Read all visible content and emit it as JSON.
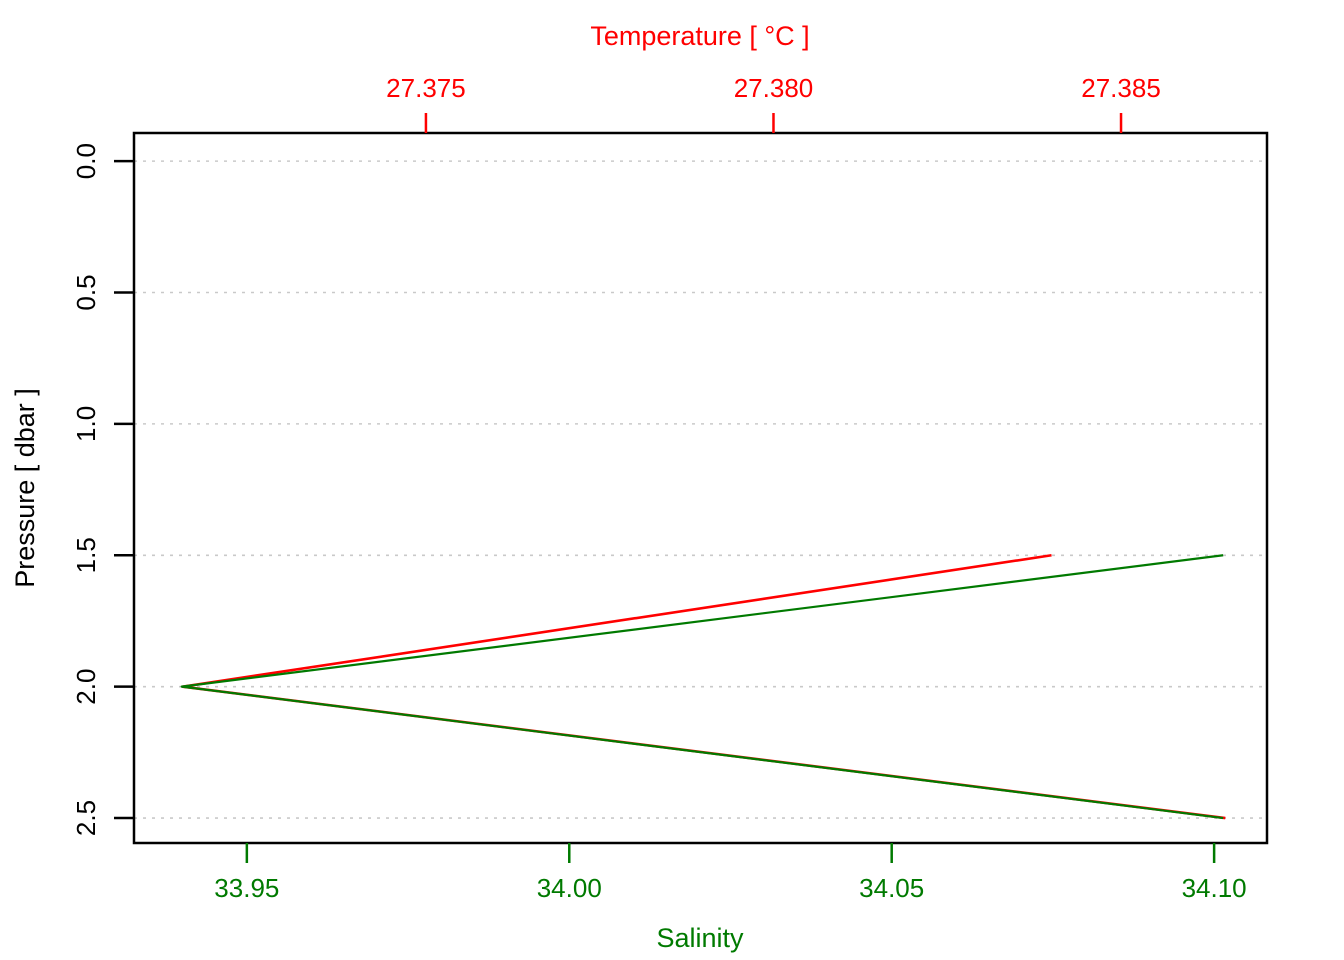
{
  "figure": {
    "background": "#FFFFFF",
    "box_color": "#000000"
  },
  "chart_data": {
    "type": "line",
    "description": "CTD profile plot: temperature (top axis, red) and salinity (bottom axis, dark green) versus pressure (left axis, increasing downward)",
    "top_axis": {
      "label": "Temperature [ °C ]",
      "color": "#FF0000",
      "ticks": [
        27.375,
        27.38,
        27.385
      ],
      "tick_labels": [
        "27.375",
        "27.380",
        "27.385"
      ],
      "range": [
        27.3708,
        27.3871
      ]
    },
    "bottom_axis": {
      "label": "Salinity",
      "color": "#007A00",
      "ticks": [
        33.95,
        34.0,
        34.05,
        34.1
      ],
      "tick_labels": [
        "33.95",
        "34.00",
        "34.05",
        "34.10"
      ],
      "range": [
        33.9325,
        34.1082
      ]
    },
    "left_axis": {
      "label": "Pressure [ dbar ]",
      "color": "#000000",
      "ticks": [
        0.0,
        0.5,
        1.0,
        1.5,
        2.0,
        2.5
      ],
      "tick_labels": [
        "0.0",
        "0.5",
        "1.0",
        "1.5",
        "2.0",
        "2.5"
      ],
      "range": [
        -0.107,
        2.595
      ],
      "direction": "increasing-downward"
    },
    "grid": {
      "show": true,
      "color": "#C9C9C9",
      "style": "dotted",
      "at_pressures": [
        0.0,
        0.5,
        1.0,
        1.5,
        2.0,
        2.5
      ]
    },
    "series": [
      {
        "name": "temperature",
        "x_axis": "top",
        "color": "#FF0000",
        "line_width": 2.6,
        "pressure": [
          1.5,
          2.0,
          2.5
        ],
        "values": [
          27.384,
          27.3715,
          27.3865
        ]
      },
      {
        "name": "salinity",
        "x_axis": "bottom",
        "color": "#007A00",
        "line_width": 2.2,
        "pressure": [
          1.5,
          2.0,
          2.5
        ],
        "values": [
          34.1014,
          33.9399,
          34.1014
        ]
      }
    ]
  }
}
